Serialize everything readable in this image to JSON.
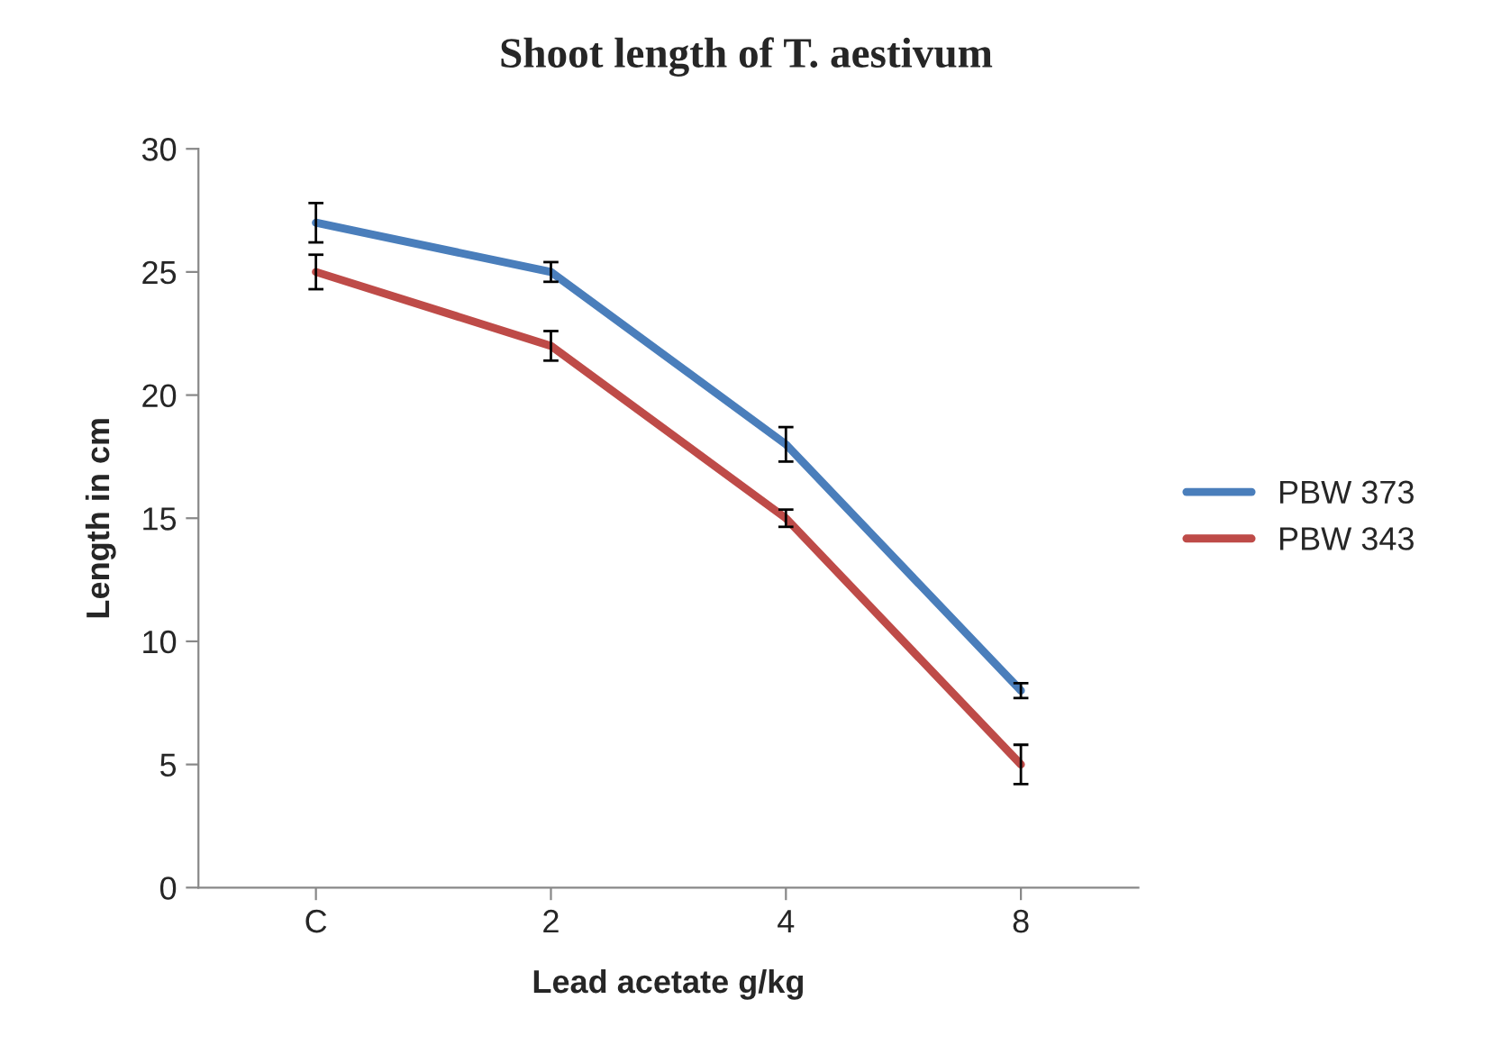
{
  "chart_data": {
    "type": "line",
    "title": "Shoot length of T. aestivum",
    "xlabel": "Lead acetate g/kg",
    "ylabel": "Length in cm",
    "categories": [
      "C",
      "2",
      "4",
      "8"
    ],
    "series": [
      {
        "name": "PBW 373",
        "color": "#4a7ebb",
        "values": [
          27,
          25,
          18,
          8
        ],
        "errors": [
          0.8,
          0.4,
          0.7,
          0.3
        ]
      },
      {
        "name": "PBW 343",
        "color": "#be4b48",
        "values": [
          25,
          22,
          15,
          5
        ],
        "errors": [
          0.7,
          0.6,
          0.35,
          0.8
        ]
      }
    ],
    "ylim": [
      0,
      30
    ],
    "yticks": [
      0,
      5,
      10,
      15,
      20,
      25,
      30
    ],
    "grid": false,
    "legend": "right",
    "marker": "none",
    "line_style": "solid"
  }
}
